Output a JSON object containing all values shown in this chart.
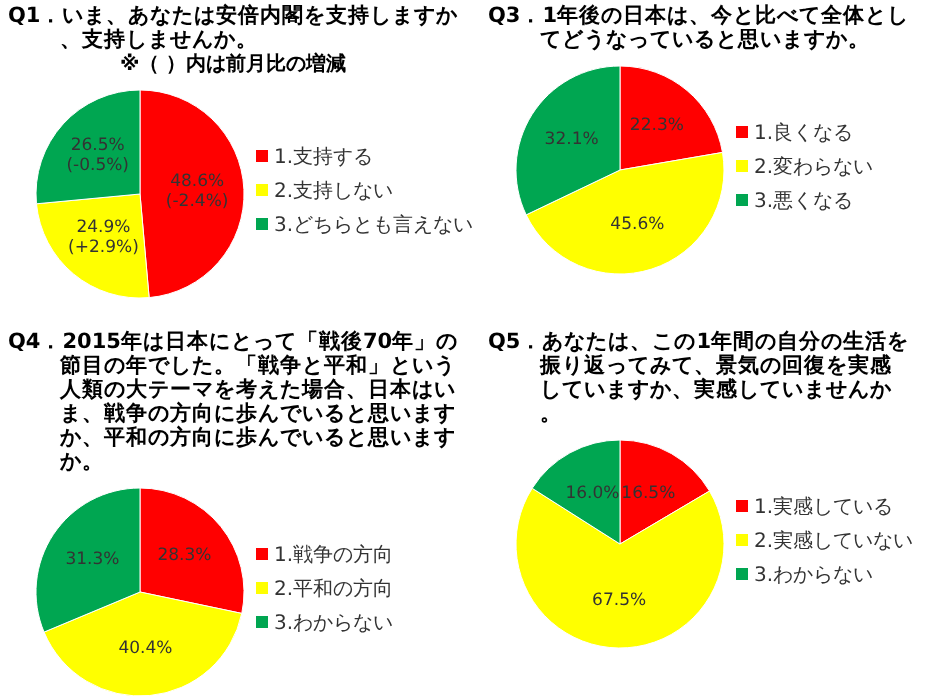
{
  "chart_data": [
    {
      "type": "pie",
      "title": "Q1．いま、あなたは安倍内閣を支持しますか、支持しませんか。",
      "subtitle": "※（ ）内は前月比の増減",
      "categories": [
        "1.支持する",
        "2.支持しない",
        "3.どちらとも言えない"
      ],
      "values": [
        48.6,
        24.9,
        26.5
      ],
      "value_labels": [
        "48.6%\n(-2.4%)",
        "24.9%\n(+2.9%)",
        "26.5%\n(-0.5%)"
      ],
      "colors": [
        "#ff0000",
        "#ffff00",
        "#00a651"
      ],
      "legend": "right"
    },
    {
      "type": "pie",
      "title": "Q3．1年後の日本は、今と比べて全体としてどうなっていると思いますか。",
      "categories": [
        "1.良くなる",
        "2.変わらない",
        "3.悪くなる"
      ],
      "values": [
        22.3,
        45.6,
        32.1
      ],
      "value_labels": [
        "22.3%",
        "45.6%",
        "32.1%"
      ],
      "colors": [
        "#ff0000",
        "#ffff00",
        "#00a651"
      ],
      "legend": "right"
    },
    {
      "type": "pie",
      "title": "Q4．2015年は日本にとって「戦後70年」の節目の年でした。「戦争と平和」という人類の大テーマを考えた場合、日本はいま、戦争の方向に歩んでいると思いますか、平和の方向に歩んでいると思いますか。",
      "categories": [
        "1.戦争の方向",
        "2.平和の方向",
        "3.わからない"
      ],
      "values": [
        28.3,
        40.4,
        31.3
      ],
      "value_labels": [
        "28.3%",
        "40.4%",
        "31.3%"
      ],
      "colors": [
        "#ff0000",
        "#ffff00",
        "#00a651"
      ],
      "legend": "right"
    },
    {
      "type": "pie",
      "title": "Q5．あなたは、この1年間の自分の生活を振り返ってみて、景気の回復を実感していますか、実感していませんか。",
      "categories": [
        "1.実感している",
        "2.実感していない",
        "3.わからない"
      ],
      "values": [
        16.5,
        67.5,
        16.0
      ],
      "value_labels": [
        "16.5%",
        "67.5%",
        "16.0%"
      ],
      "colors": [
        "#ff0000",
        "#ffff00",
        "#00a651"
      ],
      "legend": "right"
    }
  ]
}
